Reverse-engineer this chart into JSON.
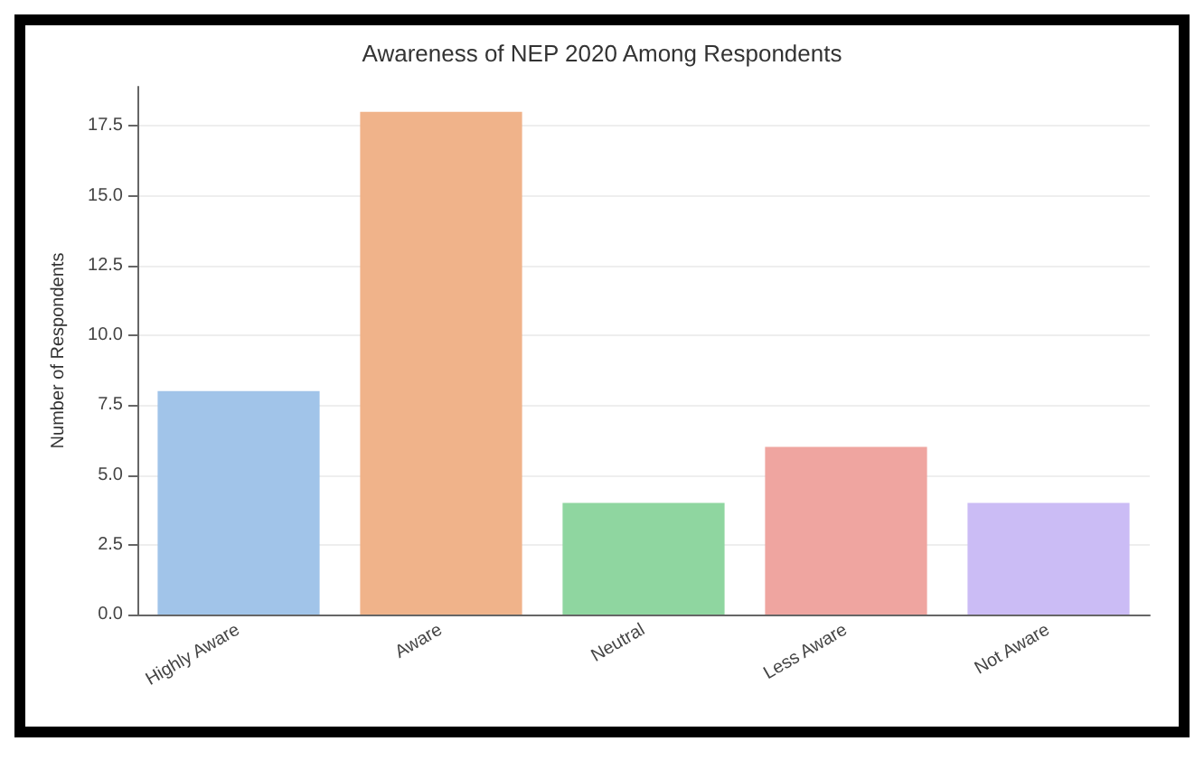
{
  "chart_data": {
    "type": "bar",
    "title": "Awareness of NEP 2020 Among Respondents",
    "ylabel": "Number of Respondents",
    "categories": [
      "Highly Aware",
      "Aware",
      "Neutral",
      "Less Aware",
      "Not Aware"
    ],
    "values": [
      8,
      18,
      4,
      6,
      4
    ],
    "colors": [
      "#a1c4e9",
      "#f0b38a",
      "#8fd6a0",
      "#efa5a0",
      "#cbbcf5"
    ],
    "ylim": [
      0,
      18.9
    ],
    "yticks": [
      {
        "value": 0,
        "label": "0.0"
      },
      2.5,
      {
        "value": 5,
        "label": "5.0"
      },
      7.5,
      {
        "value": 10,
        "label": "10.0"
      },
      12.5,
      {
        "value": 15,
        "label": "15.0"
      },
      17.5
    ],
    "grid": "y"
  }
}
